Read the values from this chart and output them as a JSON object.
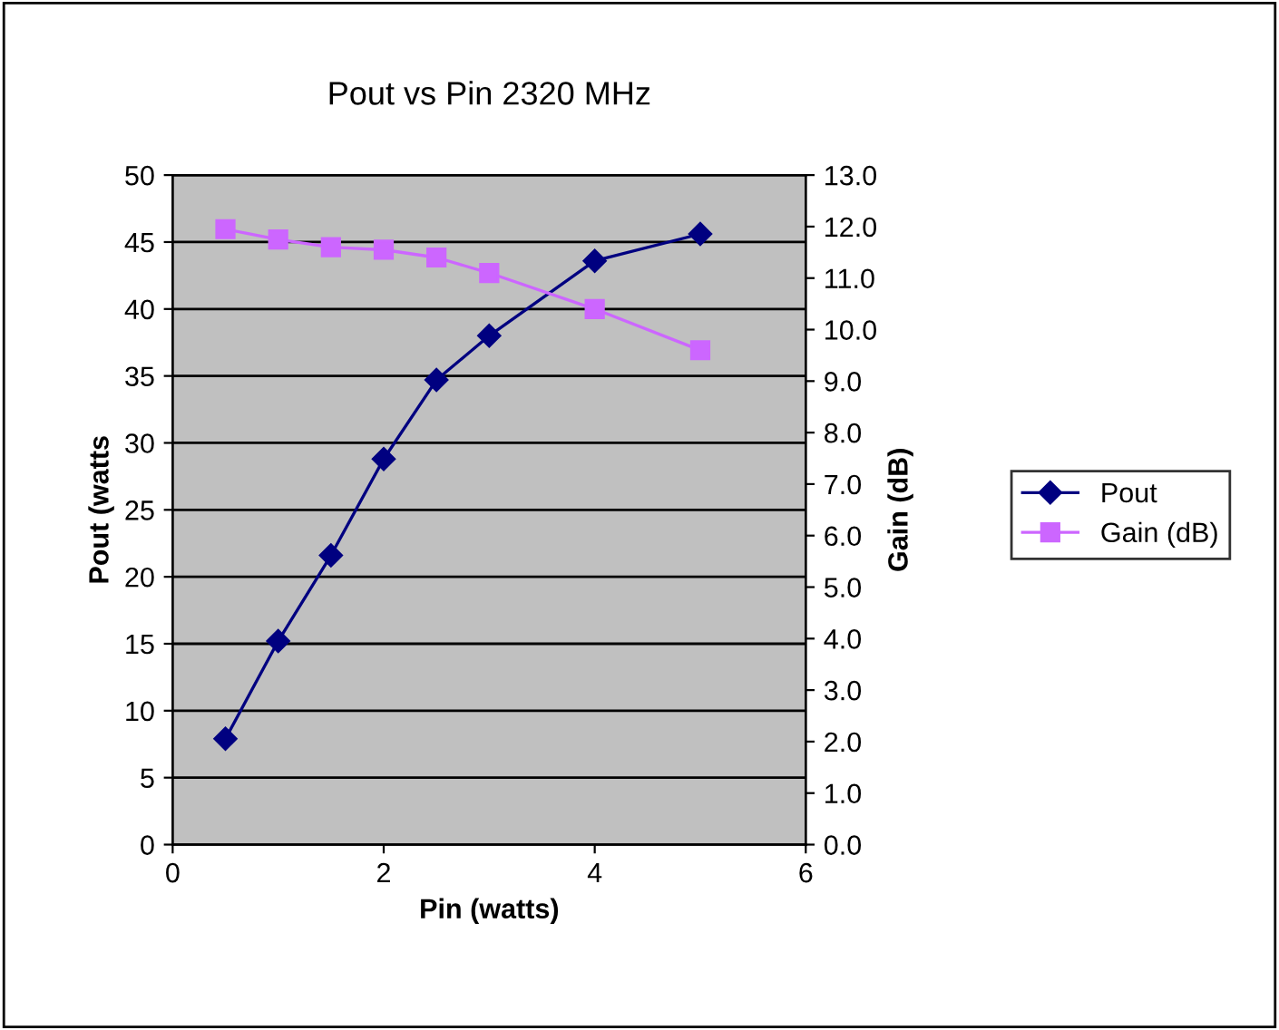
{
  "chart_data": {
    "type": "line",
    "title": "Pout vs Pin 2320 MHz",
    "xlabel": "Pin (watts)",
    "ylabel": "Pout (watts",
    "y2label": "Gain (dB)",
    "xlim": [
      0,
      6
    ],
    "xticks": [
      0,
      2,
      4,
      6
    ],
    "ylim": [
      0,
      50
    ],
    "yticks": [
      0,
      5,
      10,
      15,
      20,
      25,
      30,
      35,
      40,
      45,
      50
    ],
    "y2lim": [
      0,
      13
    ],
    "y2ticks": [
      {
        "value": 0,
        "label": "0.0"
      },
      {
        "value": 1,
        "label": "1.0"
      },
      {
        "value": 2,
        "label": "2.0"
      },
      {
        "value": 3,
        "label": "3.0"
      },
      {
        "value": 4,
        "label": "4.0"
      },
      {
        "value": 5,
        "label": "5.0"
      },
      {
        "value": 6,
        "label": "6.0"
      },
      {
        "value": 7,
        "label": "7.0"
      },
      {
        "value": 8,
        "label": "8.0"
      },
      {
        "value": 9,
        "label": "9.0"
      },
      {
        "value": 10,
        "label": "10.0"
      },
      {
        "value": 11,
        "label": "11.0"
      },
      {
        "value": 12,
        "label": "12.0"
      },
      {
        "value": 13,
        "label": "13.0"
      }
    ],
    "x": [
      0.5,
      1,
      1.5,
      2,
      2.5,
      3,
      4,
      5
    ],
    "series": [
      {
        "name": "Pout",
        "color": "#000080",
        "marker": "diamond",
        "values": [
          7.9,
          15.2,
          21.6,
          28.8,
          34.7,
          38.0,
          43.6,
          45.6
        ]
      },
      {
        "name": "Gain (dB)",
        "color": "#cc66ff",
        "marker": "square",
        "axis": "y2",
        "values": [
          11.95,
          11.75,
          11.6,
          11.55,
          11.4,
          11.1,
          10.4,
          9.6
        ]
      }
    ],
    "grid": "y",
    "legend": "right",
    "line_style": "solid"
  }
}
